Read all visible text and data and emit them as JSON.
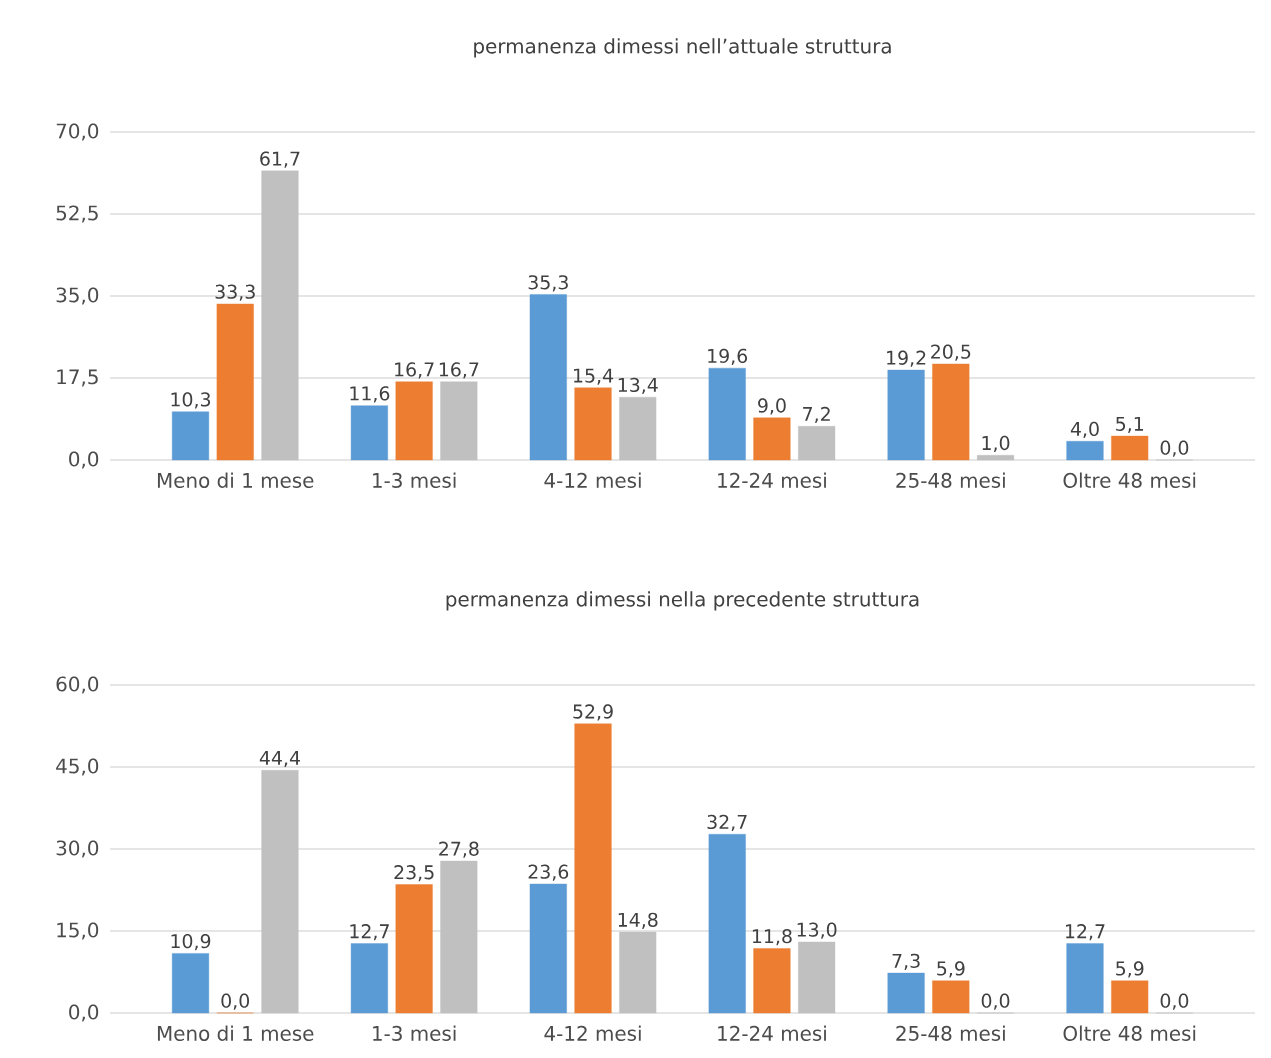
{
  "chart_data": [
    {
      "type": "bar",
      "title": "permanenza dimessi nell’attuale struttura",
      "categories": [
        "Meno di 1 mese",
        "1-3 mesi",
        "4-12 mesi",
        "12-24 mesi",
        "25-48 mesi",
        "Oltre 48 mesi"
      ],
      "series": [
        {
          "color": "#5b9bd5",
          "values": [
            10.3,
            11.6,
            35.3,
            19.6,
            19.2,
            4.0
          ],
          "value_labels": [
            "10,3",
            "11,6",
            "35,3",
            "19,6",
            "19,2",
            "4,0"
          ]
        },
        {
          "color": "#ed7d31",
          "values": [
            33.3,
            16.7,
            15.4,
            9.0,
            20.5,
            5.1
          ],
          "value_labels": [
            "33,3",
            "16,7",
            "15,4",
            "9,0",
            "20,5",
            "5,1"
          ]
        },
        {
          "color": "#c0c0c0",
          "values": [
            61.7,
            16.7,
            13.4,
            7.2,
            1.0,
            0.0
          ],
          "value_labels": [
            "61,7",
            "16,7",
            "13,4",
            "7,2",
            "1,0",
            "0,0"
          ]
        }
      ],
      "ylim": [
        0,
        70
      ],
      "yticks": [
        {
          "value": 0,
          "label": "0,0"
        },
        {
          "value": 17.5,
          "label": "17,5"
        },
        {
          "value": 35,
          "label": "35,0"
        },
        {
          "value": 52.5,
          "label": "52,5"
        },
        {
          "value": 70,
          "label": "70,0"
        }
      ],
      "grid": "y"
    },
    {
      "type": "bar",
      "title": "permanenza dimessi nella precedente struttura",
      "categories": [
        "Meno di 1 mese",
        "1-3 mesi",
        "4-12 mesi",
        "12-24 mesi",
        "25-48 mesi",
        "Oltre 48 mesi"
      ],
      "series": [
        {
          "color": "#5b9bd5",
          "values": [
            10.9,
            12.7,
            23.6,
            32.7,
            7.3,
            12.7
          ],
          "value_labels": [
            "10,9",
            "12,7",
            "23,6",
            "32,7",
            "7,3",
            "12,7"
          ]
        },
        {
          "color": "#ed7d31",
          "values": [
            0.0,
            23.5,
            52.9,
            11.8,
            5.9,
            5.9
          ],
          "value_labels": [
            "0,0",
            "23,5",
            "52,9",
            "11,8",
            "5,9",
            "5,9"
          ]
        },
        {
          "color": "#c0c0c0",
          "values": [
            44.4,
            27.8,
            14.8,
            13.0,
            0.0,
            0.0
          ],
          "value_labels": [
            "44,4",
            "27,8",
            "14,8",
            "13,0",
            "0,0",
            "0,0"
          ]
        }
      ],
      "ylim": [
        0,
        60
      ],
      "yticks": [
        {
          "value": 0,
          "label": "0,0"
        },
        {
          "value": 15,
          "label": "15,0"
        },
        {
          "value": 30,
          "label": "30,0"
        },
        {
          "value": 45,
          "label": "45,0"
        },
        {
          "value": 60,
          "label": "60,0"
        }
      ],
      "grid": "y"
    }
  ]
}
